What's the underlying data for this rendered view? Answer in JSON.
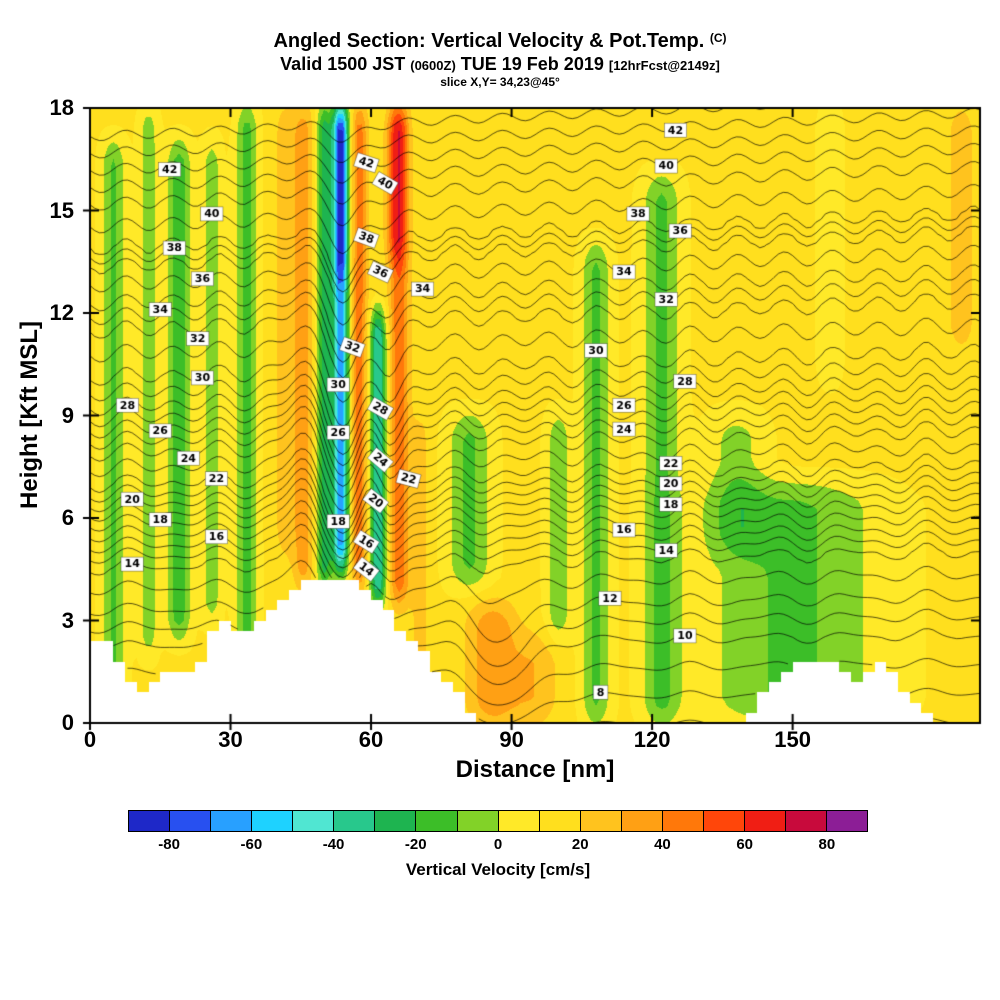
{
  "titles": {
    "main": "Angled Section: Vertical Velocity & Pot.Temp.",
    "main_unit": "(C)",
    "valid_prefix": "Valid 1500 JST ",
    "valid_small": "(0600Z)",
    "valid_date": " TUE 19 Feb 2019 ",
    "valid_fcst": "[12hrFcst@2149z]",
    "slice": "slice X,Y= 34,23@45°"
  },
  "axes": {
    "x": {
      "label": "Distance [nm]",
      "ticks": [
        0,
        30,
        60,
        90,
        120,
        150
      ],
      "max": 190
    },
    "y": {
      "label": "Height [Kft MSL]",
      "ticks": [
        0,
        3,
        6,
        9,
        12,
        15,
        18
      ],
      "max": 18
    }
  },
  "colorbar": {
    "label": "Vertical Velocity [cm/s]",
    "ticks": [
      -80,
      -60,
      -40,
      -20,
      0,
      20,
      40,
      60,
      80
    ],
    "vmin": -90,
    "vmax": 90,
    "step": 10,
    "colors": [
      "#1e28c8",
      "#2850f0",
      "#28a0ff",
      "#1ed2ff",
      "#50e6d2",
      "#28c88c",
      "#1eb450",
      "#3cbe28",
      "#82d228",
      "#ffe928",
      "#ffdf1e",
      "#ffc31e",
      "#ffa014",
      "#ff780a",
      "#ff460a",
      "#f01e14",
      "#c80a3c",
      "#8c1e96"
    ]
  },
  "chart_data": {
    "type": "filled_contour_cross_section",
    "fill_variable": "vertical velocity [cm/s]",
    "line_variable": "potential temperature [C]",
    "x_range": [
      0,
      190
    ],
    "z_range": [
      0,
      18
    ],
    "background_velocity": 12,
    "velocity_features": [
      [
        5,
        2.5,
        0,
        17,
        -24
      ],
      [
        12.5,
        2,
        2,
        18,
        -18
      ],
      [
        19,
        2.5,
        2.5,
        17,
        -28
      ],
      [
        26,
        2,
        3,
        17,
        -18
      ],
      [
        33.5,
        2.2,
        0,
        18,
        -27
      ],
      [
        41.5,
        2,
        5,
        18,
        14
      ],
      [
        45.5,
        2.3,
        4,
        18,
        24
      ],
      [
        50,
        1.6,
        4,
        18,
        -40
      ],
      [
        53.5,
        1.6,
        4.5,
        18,
        -80
      ],
      [
        53.5,
        1.5,
        13,
        18,
        -25
      ],
      [
        57.5,
        1.7,
        4,
        18,
        34
      ],
      [
        61.5,
        1.7,
        3.5,
        12,
        -55
      ],
      [
        66,
        2.1,
        3.5,
        18,
        36
      ],
      [
        65.5,
        2.1,
        13.5,
        18,
        26
      ],
      [
        70.5,
        2,
        1.5,
        9,
        12
      ],
      [
        81,
        4.5,
        4,
        9,
        -24
      ],
      [
        86,
        5.5,
        0,
        3.5,
        26
      ],
      [
        95,
        5,
        0,
        2.5,
        16
      ],
      [
        100,
        2.5,
        2.5,
        9,
        -20
      ],
      [
        108,
        3,
        0,
        14,
        -24
      ],
      [
        122,
        4,
        0,
        16,
        -24
      ],
      [
        150,
        18,
        0,
        7,
        -24
      ],
      [
        138,
        6,
        5,
        9,
        -16
      ],
      [
        186,
        3,
        11,
        18,
        14
      ],
      [
        158,
        2.5,
        10,
        18,
        -10
      ]
    ],
    "terrain_step_nm": 2.5,
    "terrain_kft": [
      2.4,
      2.3,
      1.9,
      1.3,
      0.9,
      1.1,
      1.4,
      1.6,
      1.5,
      1.9,
      2.6,
      3.1,
      2.8,
      2.6,
      3.0,
      3.4,
      3.7,
      4.0,
      4.2,
      4.3,
      4.3,
      4.2,
      4.1,
      3.9,
      3.6,
      3.2,
      2.8,
      2.4,
      2.0,
      1.6,
      1.2,
      0.8,
      0.4,
      0.1,
      0,
      0,
      0,
      0,
      0,
      0,
      0,
      0,
      0,
      0,
      0,
      0,
      0,
      0,
      0,
      0,
      0,
      0,
      0,
      0,
      0,
      0,
      0.3,
      0.8,
      1.2,
      1.5,
      1.7,
      1.9,
      1.9,
      1.7,
      1.5,
      1.3,
      1.6,
      1.7,
      1.4,
      1.0,
      0.6,
      0.2,
      0,
      0,
      0,
      0
    ],
    "theta": {
      "anchor_z": [
        0.9,
        2.6,
        3.7,
        5.05,
        5.7,
        6.4,
        7.0,
        7.6,
        8.6,
        9.3,
        10.0,
        10.9,
        12.4,
        13.2,
        14.4,
        14.9,
        16.3,
        17.35
      ],
      "anchor_theta": [
        8,
        10,
        12,
        14,
        16,
        18,
        20,
        22,
        24,
        26,
        28,
        30,
        32,
        34,
        36,
        38,
        40,
        42
      ],
      "tilt": {
        "amp": 1.0,
        "base": 0.2,
        "per_kft": 0.06
      },
      "waves": [
        [
          1.6,
          55,
          5,
          9,
          7
        ],
        [
          -0.9,
          45,
          4,
          8,
          6
        ],
        [
          1.0,
          64,
          4,
          8,
          5
        ],
        [
          -0.7,
          60,
          3,
          7,
          4
        ],
        [
          1.3,
          88,
          8,
          1.5,
          2.2
        ]
      ],
      "ripples": [
        [
          0.22,
          1.6,
          0,
          12,
          8
        ],
        [
          0.15,
          2.7,
          1.3,
          5,
          6
        ]
      ],
      "level_min": 5,
      "level_max": 44,
      "level_step": 1,
      "label_step": 2
    },
    "theta_labels": [
      [
        14,
        9,
        4.65,
        0
      ],
      [
        16,
        27,
        5.45,
        0
      ],
      [
        18,
        15,
        5.95,
        0
      ],
      [
        20,
        9,
        6.55,
        0
      ],
      [
        22,
        27,
        7.15,
        0
      ],
      [
        24,
        21,
        7.75,
        0
      ],
      [
        26,
        15,
        8.55,
        0
      ],
      [
        28,
        8,
        9.3,
        0
      ],
      [
        30,
        24,
        10.1,
        0
      ],
      [
        32,
        23,
        11.25,
        0
      ],
      [
        34,
        15,
        12.1,
        0
      ],
      [
        36,
        24,
        13.0,
        0
      ],
      [
        38,
        18,
        13.9,
        0
      ],
      [
        40,
        26,
        14.9,
        0
      ],
      [
        42,
        17,
        16.2,
        0
      ],
      [
        14,
        59,
        4.5,
        38
      ],
      [
        16,
        59,
        5.3,
        32
      ],
      [
        18,
        53,
        5.9,
        0
      ],
      [
        20,
        61,
        6.5,
        38
      ],
      [
        22,
        68,
        7.15,
        15
      ],
      [
        24,
        62,
        7.7,
        40
      ],
      [
        26,
        53,
        8.5,
        0
      ],
      [
        28,
        62,
        9.2,
        30
      ],
      [
        30,
        53,
        9.9,
        0
      ],
      [
        32,
        56,
        11.0,
        20
      ],
      [
        34,
        71,
        12.7,
        0
      ],
      [
        36,
        62,
        13.2,
        25
      ],
      [
        38,
        59,
        14.2,
        20
      ],
      [
        40,
        63,
        15.8,
        30
      ],
      [
        42,
        59,
        16.4,
        18
      ],
      [
        8,
        109,
        0.9,
        0
      ],
      [
        10,
        127,
        2.55,
        0
      ],
      [
        12,
        111,
        3.65,
        0
      ],
      [
        14,
        123,
        5.05,
        0
      ],
      [
        16,
        114,
        5.65,
        0
      ],
      [
        18,
        124,
        6.4,
        0
      ],
      [
        20,
        124,
        7.0,
        0
      ],
      [
        22,
        124,
        7.6,
        0
      ],
      [
        24,
        114,
        8.6,
        0
      ],
      [
        26,
        114,
        9.3,
        0
      ],
      [
        28,
        127,
        10.0,
        0
      ],
      [
        30,
        108,
        10.9,
        0
      ],
      [
        32,
        123,
        12.4,
        0
      ],
      [
        34,
        114,
        13.2,
        0
      ],
      [
        36,
        126,
        14.4,
        0
      ],
      [
        38,
        117,
        14.9,
        0
      ],
      [
        40,
        123,
        16.3,
        0
      ],
      [
        42,
        125,
        17.35,
        0
      ]
    ]
  }
}
